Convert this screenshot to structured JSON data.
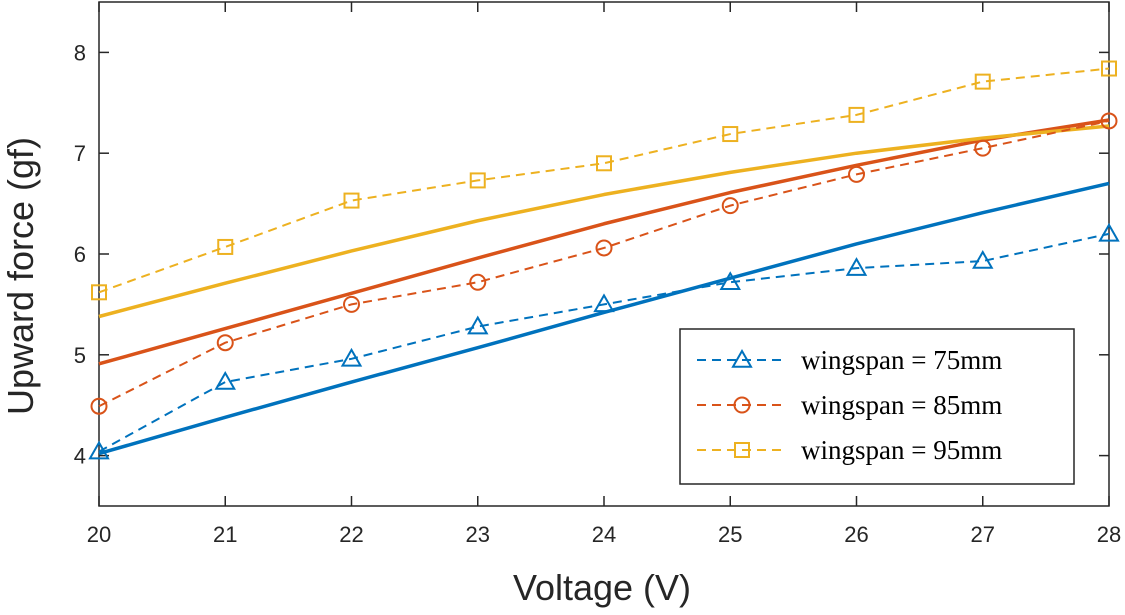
{
  "chart_data": {
    "type": "line",
    "title": "",
    "xlabel": "Voltage (V)",
    "ylabel": "Upward force (gf)",
    "xlim": [
      20,
      28
    ],
    "ylim": [
      3.5,
      8.5
    ],
    "xticks": [
      "20",
      "21",
      "22",
      "23",
      "24",
      "25",
      "26",
      "27",
      "28"
    ],
    "yticks": [
      "4",
      "5",
      "6",
      "7",
      "8"
    ],
    "grid": false,
    "legend_position": "bottom-right",
    "x": [
      20,
      21,
      22,
      23,
      24,
      25,
      26,
      27,
      28
    ],
    "series": [
      {
        "name": "wingspan = 75mm",
        "color": "#0072BD",
        "marker": "triangle",
        "line_style": "dashed",
        "values": [
          4.04,
          4.73,
          4.96,
          5.28,
          5.5,
          5.72,
          5.86,
          5.93,
          6.2
        ]
      },
      {
        "name": "wingspan = 85mm",
        "color": "#D95319",
        "marker": "circle",
        "line_style": "dashed",
        "values": [
          4.49,
          5.12,
          5.5,
          5.72,
          6.06,
          6.48,
          6.79,
          7.05,
          7.32
        ]
      },
      {
        "name": "wingspan = 95mm",
        "color": "#EDB120",
        "marker": "square",
        "line_style": "dashed",
        "values": [
          5.62,
          6.07,
          6.53,
          6.73,
          6.9,
          7.19,
          7.38,
          7.71,
          7.84
        ]
      }
    ],
    "fit_lines": [
      {
        "color": "#0072BD",
        "line_style": "solid",
        "values": [
          4.02,
          4.38,
          4.73,
          5.07,
          5.42,
          5.76,
          6.1,
          6.41,
          6.7
        ]
      },
      {
        "color": "#D95319",
        "line_style": "solid",
        "values": [
          4.91,
          5.26,
          5.61,
          5.96,
          6.3,
          6.61,
          6.88,
          7.13,
          7.33
        ]
      },
      {
        "color": "#EDB120",
        "line_style": "solid",
        "values": [
          5.38,
          5.71,
          6.03,
          6.33,
          6.59,
          6.81,
          7.0,
          7.15,
          7.27
        ]
      }
    ]
  }
}
